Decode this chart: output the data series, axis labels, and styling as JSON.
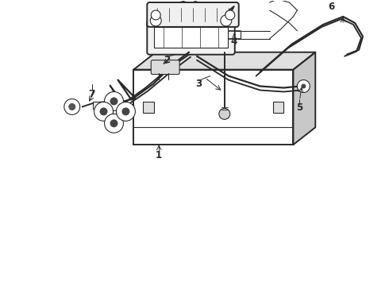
{
  "background_color": "#ffffff",
  "line_color": "#2a2a2a",
  "figsize": [
    4.9,
    3.6
  ],
  "dpi": 100,
  "lw_main": 1.4,
  "lw_thin": 0.8,
  "lw_cable": 1.6
}
